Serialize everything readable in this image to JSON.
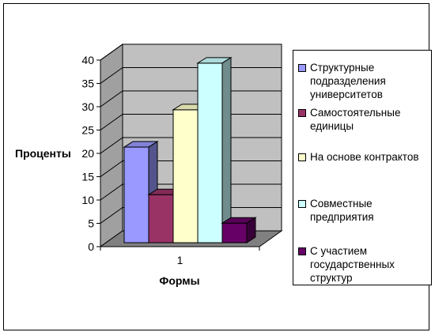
{
  "chart_data": {
    "type": "bar",
    "style": "3d-clustered-column",
    "categories": [
      "1"
    ],
    "series": [
      {
        "name": "Структурные подразделения университетов",
        "values": [
          20.5
        ],
        "color": "#9999ff"
      },
      {
        "name": "Самостоятельные единицы",
        "values": [
          10.3
        ],
        "color": "#993366"
      },
      {
        "name": "На основе контрактов",
        "values": [
          28.5
        ],
        "color": "#ffffcc"
      },
      {
        "name": "Совместные предприятия",
        "values": [
          38.5
        ],
        "color": "#ccffff"
      },
      {
        "name": "С участием государственных структур",
        "values": [
          4.2
        ],
        "color": "#660066"
      }
    ],
    "title": "",
    "xlabel": "Формы",
    "ylabel": "Проценты",
    "ylim": [
      0,
      40
    ],
    "yticks": [
      0,
      5,
      10,
      15,
      20,
      25,
      30,
      35,
      40
    ],
    "grid": true,
    "legend_position": "right",
    "wall_color": "#c0c0c0",
    "floor_color": "#808080"
  }
}
